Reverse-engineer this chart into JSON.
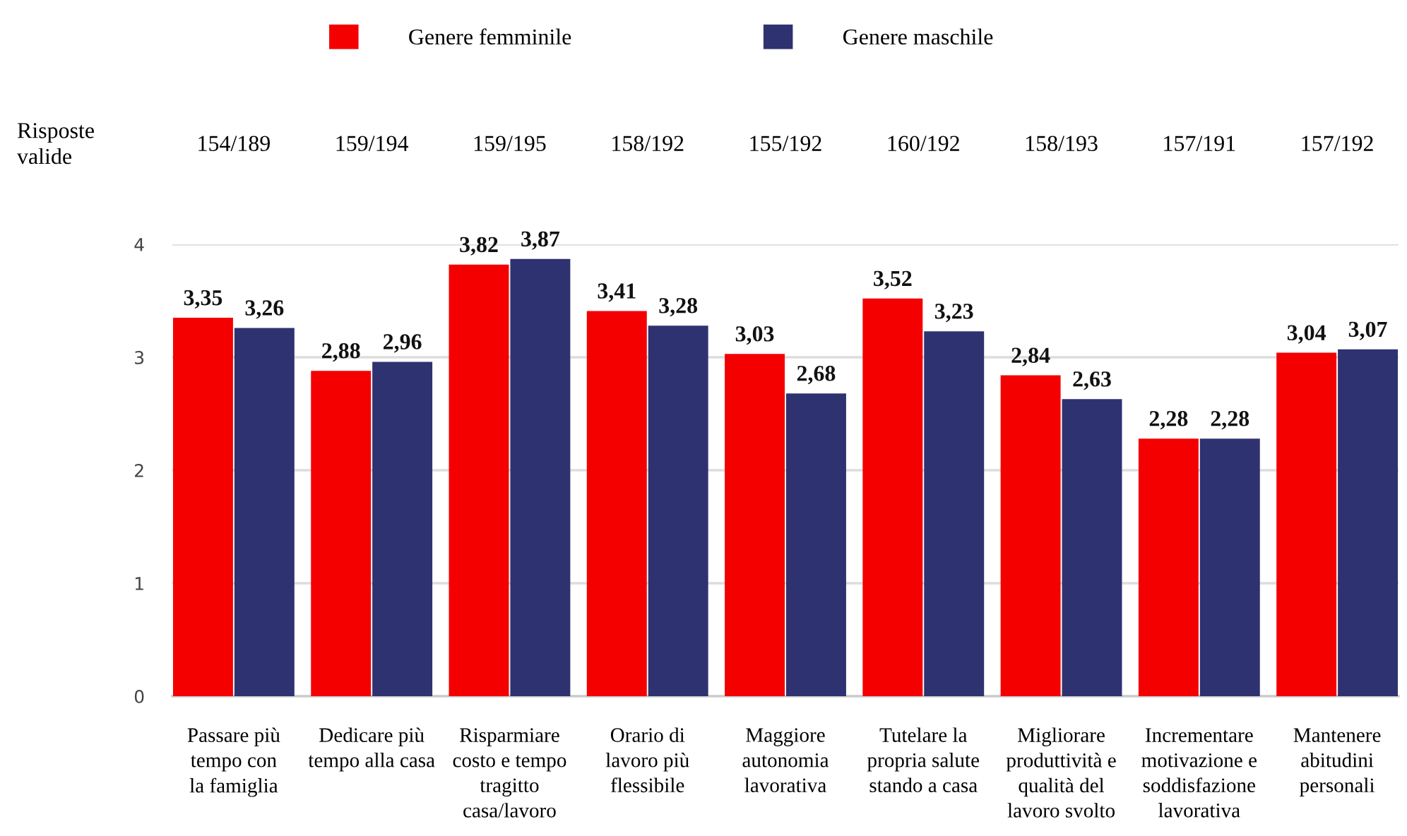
{
  "chart_data": {
    "type": "bar",
    "categories": [
      "Passare più\ntempo con\nla famiglia",
      "Dedicare più\ntempo alla casa",
      "Risparmiare\ncosto e tempo\ntragitto\ncasa/lavoro",
      "Orario di\nlavoro più\nflessibile",
      "Maggiore\nautonomia\nlavorativa",
      "Tutelare la\npropria salute\nstando a casa",
      "Migliorare\nproduttività e\nqualità del\nlavoro svolto",
      "Incrementare\nmotivazione e\nsoddisfazione\nlavorativa",
      "Mantenere\nabitudini\npersonali"
    ],
    "series": [
      {
        "name": "Genere femminile",
        "color": "#f50000",
        "values": [
          3.35,
          2.88,
          3.82,
          3.41,
          3.03,
          3.52,
          2.84,
          2.28,
          3.04
        ],
        "value_labels": [
          "3,35",
          "2,88",
          "3,82",
          "3,41",
          "3,03",
          "3,52",
          "2,84",
          "2,28",
          "3,04"
        ]
      },
      {
        "name": "Genere maschile",
        "color": "#2e3270",
        "values": [
          3.26,
          2.96,
          3.87,
          3.28,
          2.68,
          3.23,
          2.63,
          2.28,
          3.07
        ],
        "value_labels": [
          "3,26",
          "2,96",
          "3,87",
          "3,28",
          "2,68",
          "3,23",
          "2,63",
          "2,28",
          "3,07"
        ]
      }
    ],
    "annotations": [
      "Risposte\nvalide",
      "154/189",
      "159/194",
      "159/195",
      "158/192",
      "155/192",
      "160/192",
      "158/193",
      "157/191",
      "157/192"
    ],
    "ylim": [
      0,
      4
    ],
    "yticks": [
      0,
      1,
      2,
      3,
      4
    ],
    "grid": "y",
    "legend": "top"
  }
}
